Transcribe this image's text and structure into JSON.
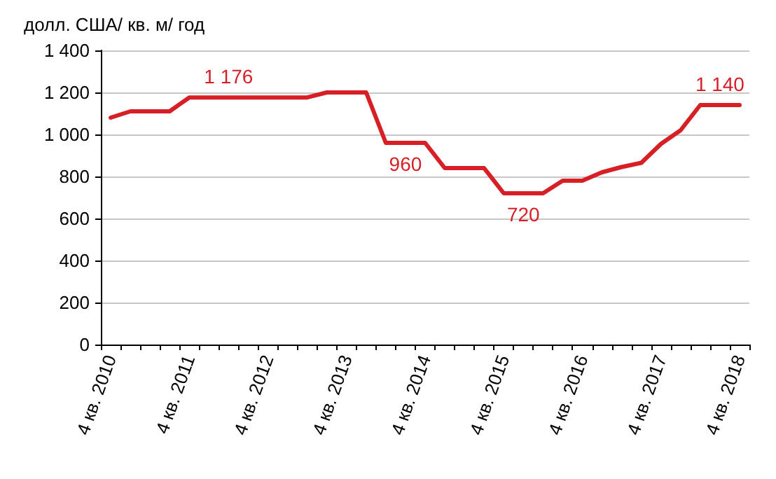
{
  "chart_data": {
    "type": "line",
    "ylabel": "долл. США/ кв. м/ год",
    "categories": [
      "4 кв. 2010",
      null,
      null,
      null,
      "4 кв. 2011",
      null,
      null,
      null,
      "4 кв. 2012",
      null,
      null,
      null,
      "4 кв. 2013",
      null,
      null,
      null,
      "4 кв. 2014",
      null,
      null,
      null,
      "4 кв. 2015",
      null,
      null,
      null,
      "4 кв. 2016",
      null,
      null,
      null,
      "4 кв. 2017",
      null,
      null,
      null,
      "4 кв. 2018"
    ],
    "series": [
      {
        "color": "#d71f26",
        "values": [
          1080,
          1110,
          1110,
          1110,
          1176,
          1176,
          1176,
          1176,
          1176,
          1176,
          1176,
          1200,
          1200,
          1200,
          960,
          960,
          960,
          840,
          840,
          840,
          720,
          720,
          720,
          780,
          780,
          820,
          845,
          865,
          955,
          1020,
          1140,
          1140,
          1140
        ],
        "value_labels": [
          null,
          null,
          null,
          null,
          null,
          null,
          "1 176",
          null,
          null,
          null,
          null,
          null,
          null,
          null,
          null,
          "960",
          null,
          null,
          null,
          null,
          null,
          "720",
          null,
          null,
          null,
          null,
          null,
          null,
          null,
          null,
          null,
          "1 140",
          null
        ]
      }
    ],
    "ylim": [
      0,
      1400
    ],
    "yticks": [
      0,
      200,
      400,
      600,
      800,
      {
        "value": 1000,
        "label": "1 000"
      },
      {
        "value": 1200,
        "label": "1 200"
      },
      {
        "value": 1400,
        "label": "1 400"
      }
    ],
    "grid": "y",
    "marker": "none",
    "line_style": "solid"
  }
}
